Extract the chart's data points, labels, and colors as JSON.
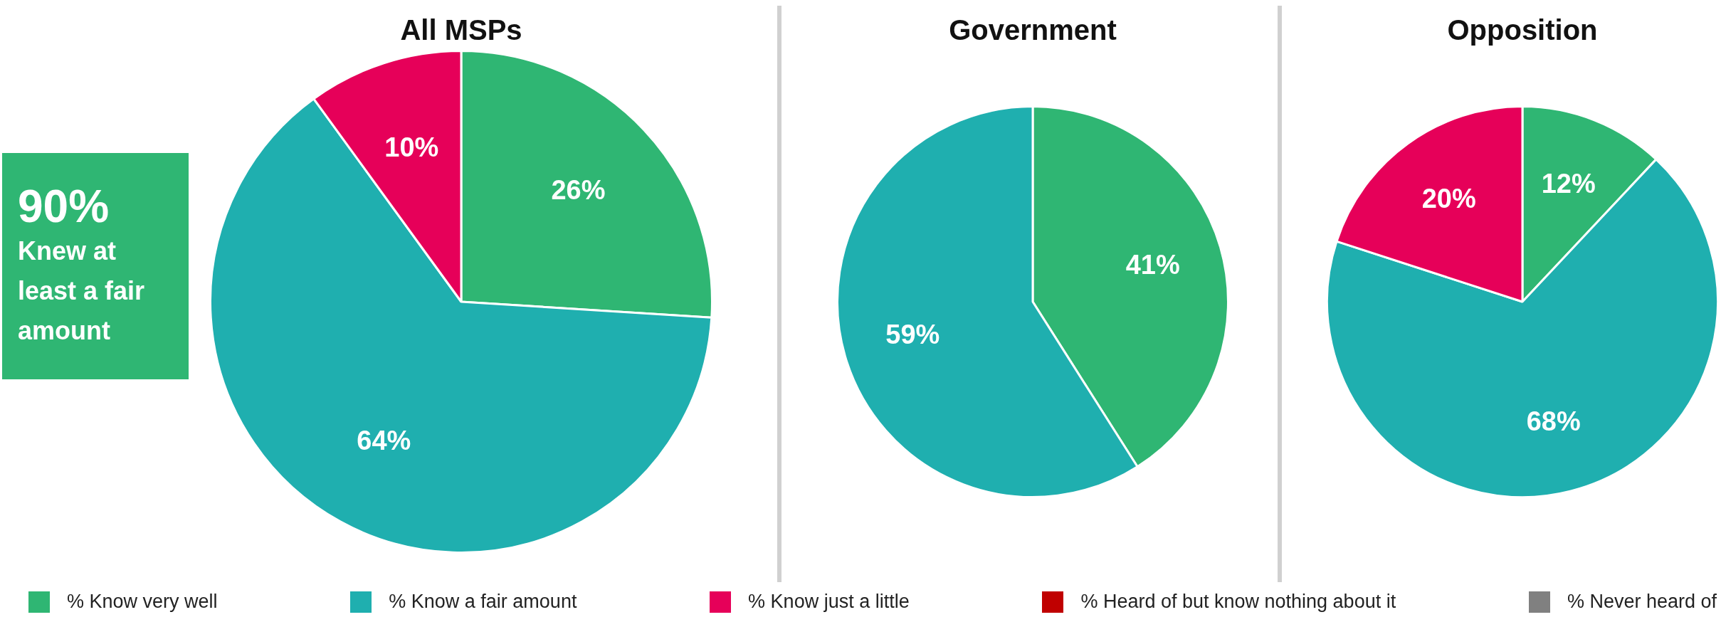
{
  "chart_data": [
    {
      "type": "pie",
      "title": "All MSPs",
      "categories": [
        "% Know very well",
        "% Know a fair amount",
        "% Know just a little",
        "% Heard of but know nothing about it",
        "% Never heard of"
      ],
      "values": [
        26,
        64,
        10,
        0,
        0
      ],
      "value_labels": [
        "26%",
        "64%",
        "10%",
        null,
        null
      ],
      "colors": [
        "#2fb673",
        "#1fafaf",
        "#e60059",
        "#c00000",
        "#808080"
      ],
      "legend": "bottom",
      "annotations": [
        "90%",
        "Knew at least a fair amount"
      ]
    },
    {
      "type": "pie",
      "title": "Government",
      "categories": [
        null,
        null,
        null,
        null,
        null
      ],
      "values": [
        41,
        59,
        0,
        0,
        0
      ],
      "value_labels": [
        "41%",
        "59%",
        null,
        null,
        null
      ],
      "colors": [
        "#2fb673",
        "#1fafaf",
        "#e60059",
        "#c00000",
        "#808080"
      ]
    },
    {
      "type": "pie",
      "title": "Opposition",
      "categories": [
        null,
        null,
        null,
        null,
        null
      ],
      "values": [
        12,
        68,
        20,
        0,
        0
      ],
      "value_labels": [
        "12%",
        "68%",
        "20%",
        null,
        null
      ],
      "colors": [
        "#2fb673",
        "#1fafaf",
        "#e60059",
        "#c00000",
        "#808080"
      ]
    }
  ]
}
